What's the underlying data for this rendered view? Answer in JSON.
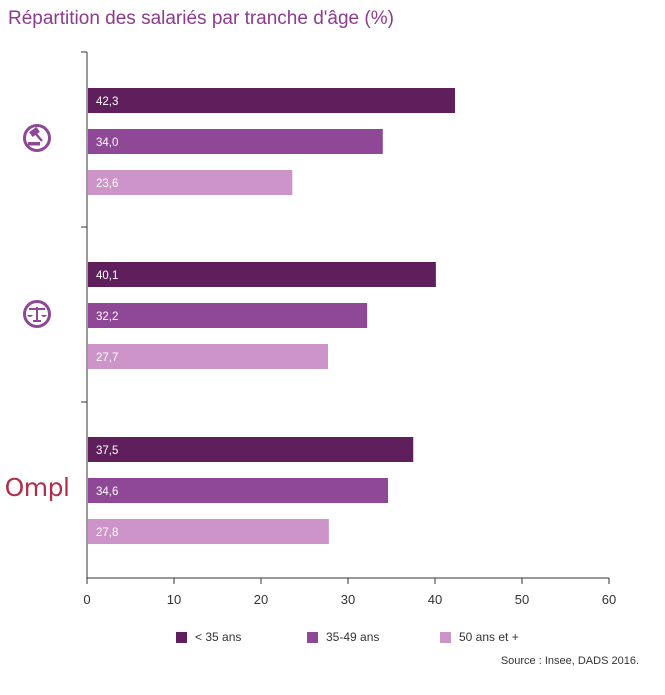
{
  "chart_data": {
    "type": "bar",
    "orientation": "horizontal",
    "title": "Répartition des salariés par tranche d'âge (%)",
    "groups": [
      {
        "icon": "gavel-icon",
        "values": [
          42.3,
          34.0,
          23.6
        ],
        "labels": [
          "42,3",
          "34,0",
          "23,6"
        ]
      },
      {
        "icon": "balance-scale-icon",
        "values": [
          40.1,
          32.2,
          27.7
        ],
        "labels": [
          "40,1",
          "32,2",
          "27,7"
        ]
      },
      {
        "logo": "Ompl",
        "icon": "ompl-logo",
        "values": [
          37.5,
          34.6,
          27.8
        ],
        "labels": [
          "37,5",
          "34,6",
          "27,8"
        ]
      }
    ],
    "series": [
      {
        "name": "< 35 ans",
        "color": "#5e1f5c"
      },
      {
        "name": "35-49 ans",
        "color": "#8e4896"
      },
      {
        "name": "50 ans et +",
        "color": "#cc94c8"
      }
    ],
    "xlim": [
      0,
      60
    ],
    "xticks": [
      0,
      10,
      20,
      30,
      40,
      50,
      60
    ],
    "xtick_labels": [
      "0",
      "10",
      "20",
      "30",
      "40",
      "50",
      "60"
    ],
    "legend_position": "bottom",
    "grid": false
  },
  "source": "Source : Insee, DADS 2016.",
  "colors": {
    "title": "#8c3b8f",
    "axis": "#333333",
    "logo": "#b0304a",
    "icon": "#8e4896"
  }
}
